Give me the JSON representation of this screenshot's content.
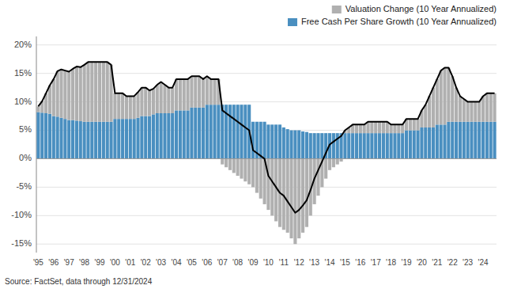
{
  "chart_data": {
    "type": "bar",
    "stacked": true,
    "grid": true,
    "legend": "upper right",
    "annotations": [
      "Source: FactSet, data through 12/31/2024"
    ],
    "ylim": [
      -16.5,
      21.5
    ],
    "yticks": [
      {
        "value": -15,
        "label": "-15%"
      },
      {
        "value": -10,
        "label": "-10%"
      },
      {
        "value": -5,
        "label": "-5%"
      },
      {
        "value": 0,
        "label": "0%"
      },
      {
        "value": 5,
        "label": "5%"
      },
      {
        "value": 10,
        "label": "10%"
      },
      {
        "value": 15,
        "label": "15%"
      },
      {
        "value": 20,
        "label": "20%"
      }
    ],
    "categories": [
      "'95",
      null,
      null,
      null,
      "'96",
      null,
      null,
      null,
      "'97",
      null,
      null,
      null,
      "'98",
      null,
      null,
      null,
      "'99",
      null,
      null,
      null,
      "'00",
      null,
      null,
      null,
      "'01",
      null,
      null,
      null,
      "'02",
      null,
      null,
      null,
      "'03",
      null,
      null,
      null,
      "'04",
      null,
      null,
      null,
      "'05",
      null,
      null,
      null,
      "'06",
      null,
      null,
      null,
      "'07",
      null,
      null,
      null,
      "'08",
      null,
      null,
      null,
      "'09",
      null,
      null,
      null,
      "'10",
      null,
      null,
      null,
      "'11",
      null,
      null,
      null,
      "'12",
      null,
      null,
      null,
      "'13",
      null,
      null,
      null,
      "'14",
      null,
      null,
      null,
      "'15",
      null,
      null,
      null,
      "'16",
      null,
      null,
      null,
      "'17",
      null,
      null,
      null,
      "'18",
      null,
      null,
      null,
      "'19",
      null,
      null,
      null,
      "'20",
      null,
      null,
      null,
      "'21",
      null,
      null,
      null,
      "'22",
      null,
      null,
      null,
      "'23",
      null,
      null,
      null,
      "'24",
      null,
      null,
      null
    ],
    "series": [
      {
        "name": "Free Cash Per Share Growth (10 Year Annualized)",
        "type": "bar",
        "color": "#4a8fc0",
        "values": [
          8.2,
          8.1,
          8.0,
          7.9,
          7.5,
          7.4,
          7.2,
          7.0,
          6.8,
          6.8,
          6.7,
          6.6,
          6.5,
          6.5,
          6.5,
          6.5,
          6.5,
          6.5,
          6.5,
          6.5,
          7.0,
          7.0,
          7.0,
          7.0,
          7.0,
          7.0,
          7.2,
          7.5,
          7.5,
          7.5,
          7.8,
          8.0,
          8.0,
          8.0,
          8.0,
          8.0,
          8.5,
          8.5,
          8.5,
          8.5,
          9.0,
          9.0,
          9.0,
          9.0,
          9.5,
          9.5,
          9.5,
          9.5,
          9.5,
          9.5,
          9.5,
          9.5,
          9.5,
          9.5,
          9.5,
          9.5,
          6.5,
          6.5,
          6.5,
          6.5,
          6.0,
          6.0,
          6.0,
          6.0,
          5.5,
          5.2,
          5.0,
          5.0,
          5.0,
          4.8,
          4.7,
          4.5,
          4.5,
          4.5,
          4.5,
          4.5,
          4.5,
          4.5,
          4.5,
          4.5,
          4.5,
          4.5,
          4.5,
          4.5,
          4.5,
          4.5,
          4.5,
          4.5,
          4.5,
          4.5,
          4.5,
          4.5,
          4.5,
          4.5,
          4.5,
          4.5,
          5.0,
          5.0,
          5.0,
          5.0,
          5.5,
          5.5,
          5.5,
          5.5,
          6.0,
          6.0,
          6.0,
          6.5,
          6.5,
          6.5,
          6.5,
          6.5,
          6.5,
          6.5,
          6.5,
          6.5,
          6.5,
          6.5,
          6.5,
          6.5
        ]
      },
      {
        "name": "Valuation Change (10 Year Annualized)",
        "type": "bar",
        "color": "#b0b0b0",
        "values": [
          1.0,
          2.0,
          3.5,
          5.0,
          6.5,
          8.0,
          8.5,
          8.5,
          8.5,
          9.0,
          9.5,
          9.5,
          10.0,
          10.5,
          10.5,
          10.5,
          10.5,
          10.5,
          10.5,
          10.0,
          4.5,
          4.5,
          4.5,
          4.0,
          4.0,
          4.0,
          4.5,
          5.0,
          5.0,
          4.5,
          4.5,
          5.0,
          5.5,
          5.0,
          4.5,
          4.5,
          5.5,
          5.5,
          5.5,
          5.5,
          5.5,
          5.5,
          5.5,
          5.0,
          5.0,
          4.5,
          4.5,
          4.5,
          -1.0,
          -1.5,
          -2.0,
          -2.5,
          -3.0,
          -3.5,
          -4.0,
          -4.5,
          -5.0,
          -6.0,
          -7.0,
          -8.0,
          -9.0,
          -10.0,
          -11.0,
          -12.0,
          -12.5,
          -13.0,
          -14.0,
          -15.0,
          -14.0,
          -13.0,
          -12.0,
          -10.0,
          -8.0,
          -6.5,
          -5.0,
          -3.5,
          -2.0,
          -1.5,
          -1.0,
          -0.5,
          0.5,
          1.0,
          1.5,
          1.5,
          1.5,
          1.5,
          2.0,
          2.0,
          2.0,
          2.0,
          2.0,
          2.0,
          1.5,
          1.5,
          1.5,
          1.5,
          2.0,
          2.0,
          2.0,
          2.0,
          3.0,
          4.0,
          5.5,
          7.0,
          8.0,
          9.5,
          10.0,
          9.5,
          8.0,
          6.0,
          4.5,
          4.0,
          3.5,
          3.5,
          3.5,
          3.5,
          4.5,
          5.0,
          5.0,
          5.0
        ]
      },
      {
        "type": "line",
        "color": "#000000",
        "values": [
          9.2,
          10.1,
          11.5,
          12.9,
          14.0,
          15.4,
          15.7,
          15.5,
          15.3,
          15.8,
          16.2,
          16.1,
          16.5,
          17.0,
          17.0,
          17.0,
          17.0,
          17.0,
          17.0,
          16.5,
          11.5,
          11.5,
          11.5,
          11.0,
          11.0,
          11.0,
          11.7,
          12.5,
          12.5,
          12.0,
          12.3,
          13.0,
          13.5,
          13.0,
          12.5,
          12.5,
          14.0,
          14.0,
          14.0,
          14.0,
          14.5,
          14.5,
          14.5,
          14.0,
          14.5,
          14.0,
          14.0,
          14.0,
          8.5,
          8.0,
          7.5,
          7.0,
          6.5,
          6.0,
          5.5,
          5.0,
          1.5,
          1.0,
          0.5,
          0.0,
          -3.0,
          -4.0,
          -5.0,
          -6.0,
          -6.5,
          -7.5,
          -8.5,
          -9.5,
          -9.0,
          -8.2,
          -7.3,
          -5.5,
          -3.5,
          -2.0,
          -0.5,
          1.0,
          2.5,
          3.0,
          3.5,
          4.0,
          5.0,
          5.5,
          6.0,
          6.0,
          6.0,
          6.0,
          6.5,
          6.5,
          6.5,
          6.5,
          6.5,
          6.5,
          6.0,
          6.0,
          6.0,
          6.0,
          7.0,
          7.0,
          7.0,
          7.0,
          8.5,
          9.5,
          11.0,
          12.5,
          14.0,
          15.5,
          16.0,
          16.0,
          14.5,
          12.5,
          11.0,
          10.5,
          10.0,
          10.0,
          10.0,
          10.0,
          11.0,
          11.5,
          11.5,
          11.5
        ]
      }
    ]
  }
}
